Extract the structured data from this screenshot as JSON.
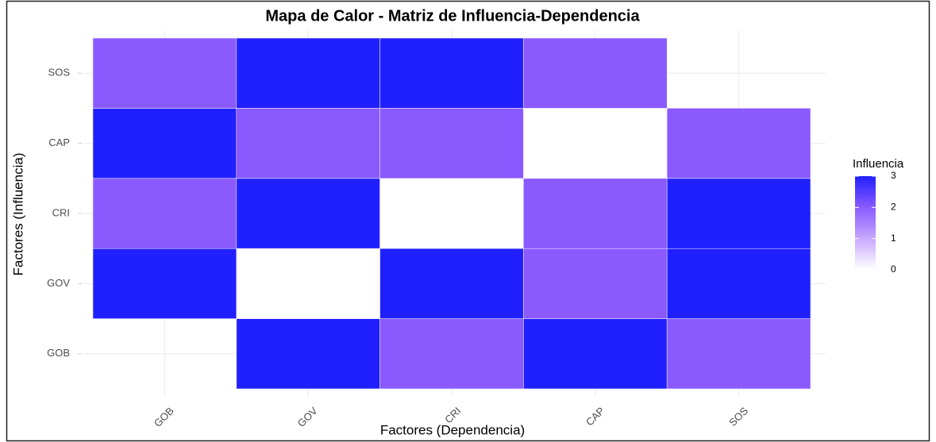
{
  "chart_data": {
    "type": "heatmap",
    "title": "Mapa de Calor - Matriz de Influencia-Dependencia",
    "x_label": "Factores (Dependencia)",
    "y_label": "Factores (Influencia)",
    "x": [
      "GOB",
      "GOV",
      "CRI",
      "CAP",
      "SOS"
    ],
    "y": [
      "GOB",
      "GOV",
      "CRI",
      "CAP",
      "SOS"
    ],
    "z": [
      [
        null,
        3,
        2,
        3,
        2
      ],
      [
        3,
        0,
        3,
        2,
        3
      ],
      [
        2,
        3,
        0,
        2,
        3
      ],
      [
        3,
        2,
        2,
        0,
        2
      ],
      [
        2,
        3,
        3,
        2,
        null
      ]
    ],
    "legend_title": "Influencia",
    "zlim": [
      0,
      3
    ],
    "zticks": [
      0,
      1,
      2,
      3
    ],
    "colorscale": [
      "#ffffff",
      "#c7a9ff",
      "#8a5aff",
      "#2020ff"
    ],
    "grid": true
  }
}
